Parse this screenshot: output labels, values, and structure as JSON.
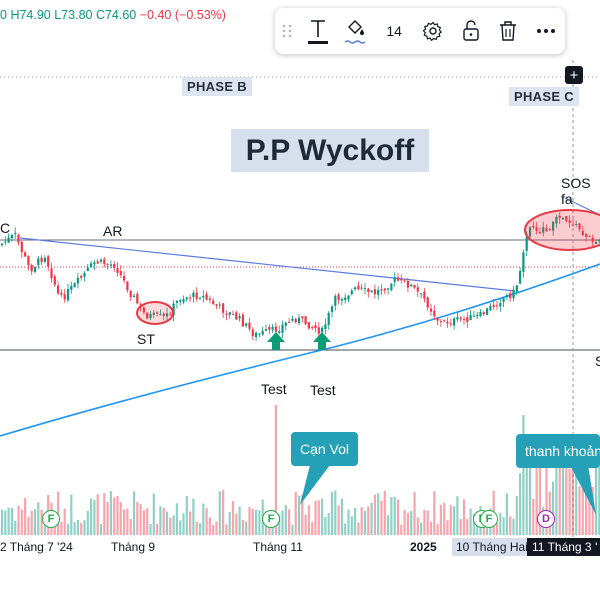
{
  "ohlc": {
    "open_tail": "0",
    "high": "H74.90",
    "low": "L73.80",
    "close": "C74.60",
    "change": "−0.40 (−0.53%)"
  },
  "toolbar": {
    "font_size": "14",
    "icons": [
      "drag-handle-icon",
      "text-icon",
      "fill-bucket-icon",
      "settings-icon",
      "lock-open-icon",
      "trash-icon",
      "more-icon"
    ]
  },
  "annotations": {
    "phase_b": "PHASE B",
    "phase_c": "PHASE C",
    "title": "P.P Wyckoff",
    "sos": "SOS fa",
    "ar": "AR",
    "st": "ST",
    "test1": "Test",
    "test2": "Test",
    "c_label": "C",
    "s_label": "S",
    "can_vol": "Cạn Vol",
    "thanh_khoan": "thanh khoản"
  },
  "x_axis": {
    "labels": [
      "2 Tháng 7 '24",
      "Tháng 9",
      "Tháng 11",
      "2025",
      "10 Tháng Hai",
      "11 Tháng 3 '"
    ]
  },
  "markers": [
    "F",
    "F",
    "F",
    "F",
    "D"
  ],
  "colors": {
    "up": "#089981",
    "down": "#f23645",
    "trend": "#5b7bdf",
    "ma": "#2196f3",
    "callout": "#26a0b6",
    "ellipse": "#e53945"
  }
}
